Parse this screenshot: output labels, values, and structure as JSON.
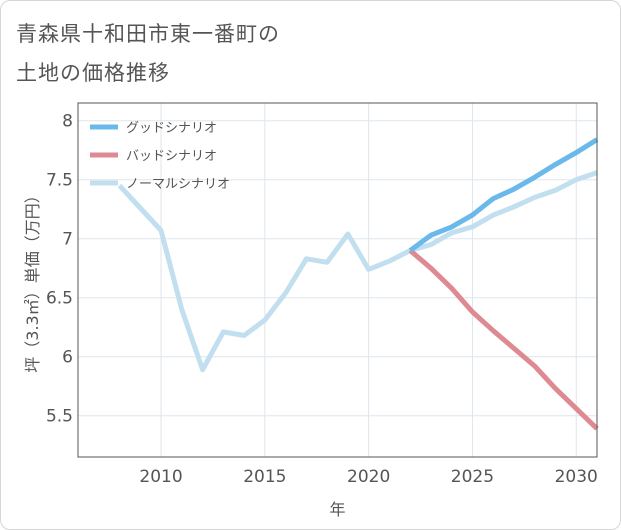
{
  "title_line1": "青森県十和田市東一番町の",
  "title_line2": "土地の価格推移",
  "chart_data": {
    "type": "line",
    "xlabel": "年",
    "ylabel": "坪（3.3㎡）単価（万円）",
    "xlim": [
      2006,
      2031
    ],
    "ylim": [
      5.15,
      8.15
    ],
    "xticks": [
      2010,
      2015,
      2020,
      2025,
      2030
    ],
    "yticks": [
      5.5,
      6,
      6.5,
      7,
      7.5,
      8
    ],
    "ytick_labels": [
      "5.5",
      "6",
      "6.5",
      "7",
      "7.5",
      "8"
    ],
    "grid": true,
    "legend_position": "top-left",
    "series": [
      {
        "name": "グッドシナリオ",
        "color": "#6bb8ea",
        "x": [
          2022,
          2023,
          2024,
          2025,
          2026,
          2027,
          2028,
          2029,
          2030,
          2031
        ],
        "y": [
          6.9,
          7.03,
          7.1,
          7.2,
          7.34,
          7.42,
          7.52,
          7.63,
          7.73,
          7.84
        ]
      },
      {
        "name": "バッドシナリオ",
        "color": "#de8a92",
        "x": [
          2022,
          2023,
          2024,
          2025,
          2026,
          2027,
          2028,
          2029,
          2030,
          2031
        ],
        "y": [
          6.9,
          6.75,
          6.58,
          6.38,
          6.22,
          6.07,
          5.92,
          5.73,
          5.56,
          5.39
        ]
      },
      {
        "name": "ノーマルシナリオ",
        "color": "#c2dff0",
        "x": [
          2008,
          2009,
          2010,
          2011,
          2012,
          2013,
          2014,
          2015,
          2016,
          2017,
          2018,
          2019,
          2020,
          2021,
          2022,
          2023,
          2024,
          2025,
          2026,
          2027,
          2028,
          2029,
          2030,
          2031
        ],
        "y": [
          7.45,
          7.26,
          7.07,
          6.4,
          5.89,
          6.21,
          6.18,
          6.31,
          6.54,
          6.83,
          6.8,
          7.04,
          6.74,
          6.81,
          6.9,
          6.95,
          7.05,
          7.1,
          7.2,
          7.27,
          7.35,
          7.41,
          7.5,
          7.56
        ]
      }
    ]
  }
}
